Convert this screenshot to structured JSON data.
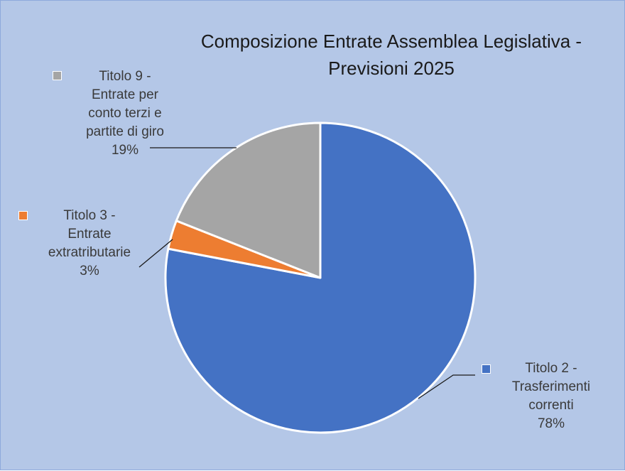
{
  "chart_data": {
    "type": "pie",
    "title": [
      "Composizione Entrate Assemblea Legislativa  -",
      "Previsioni 2025"
    ],
    "legend_placement": "data-labels-outside",
    "slices": [
      {
        "label_lines": [
          "Titolo 2 -",
          "Trasferimenti",
          "correnti"
        ],
        "value": 78,
        "value_label": "78%",
        "color": "#4472c4"
      },
      {
        "label_lines": [
          "Titolo 3 -",
          "Entrate",
          "extratributarie"
        ],
        "value": 3,
        "value_label": "3%",
        "color": "#ed7d31"
      },
      {
        "label_lines": [
          "Titolo 9 -",
          "Entrate per",
          "conto terzi e",
          "partite di giro"
        ],
        "value": 19,
        "value_label": "19%",
        "color": "#a5a5a5"
      }
    ]
  }
}
